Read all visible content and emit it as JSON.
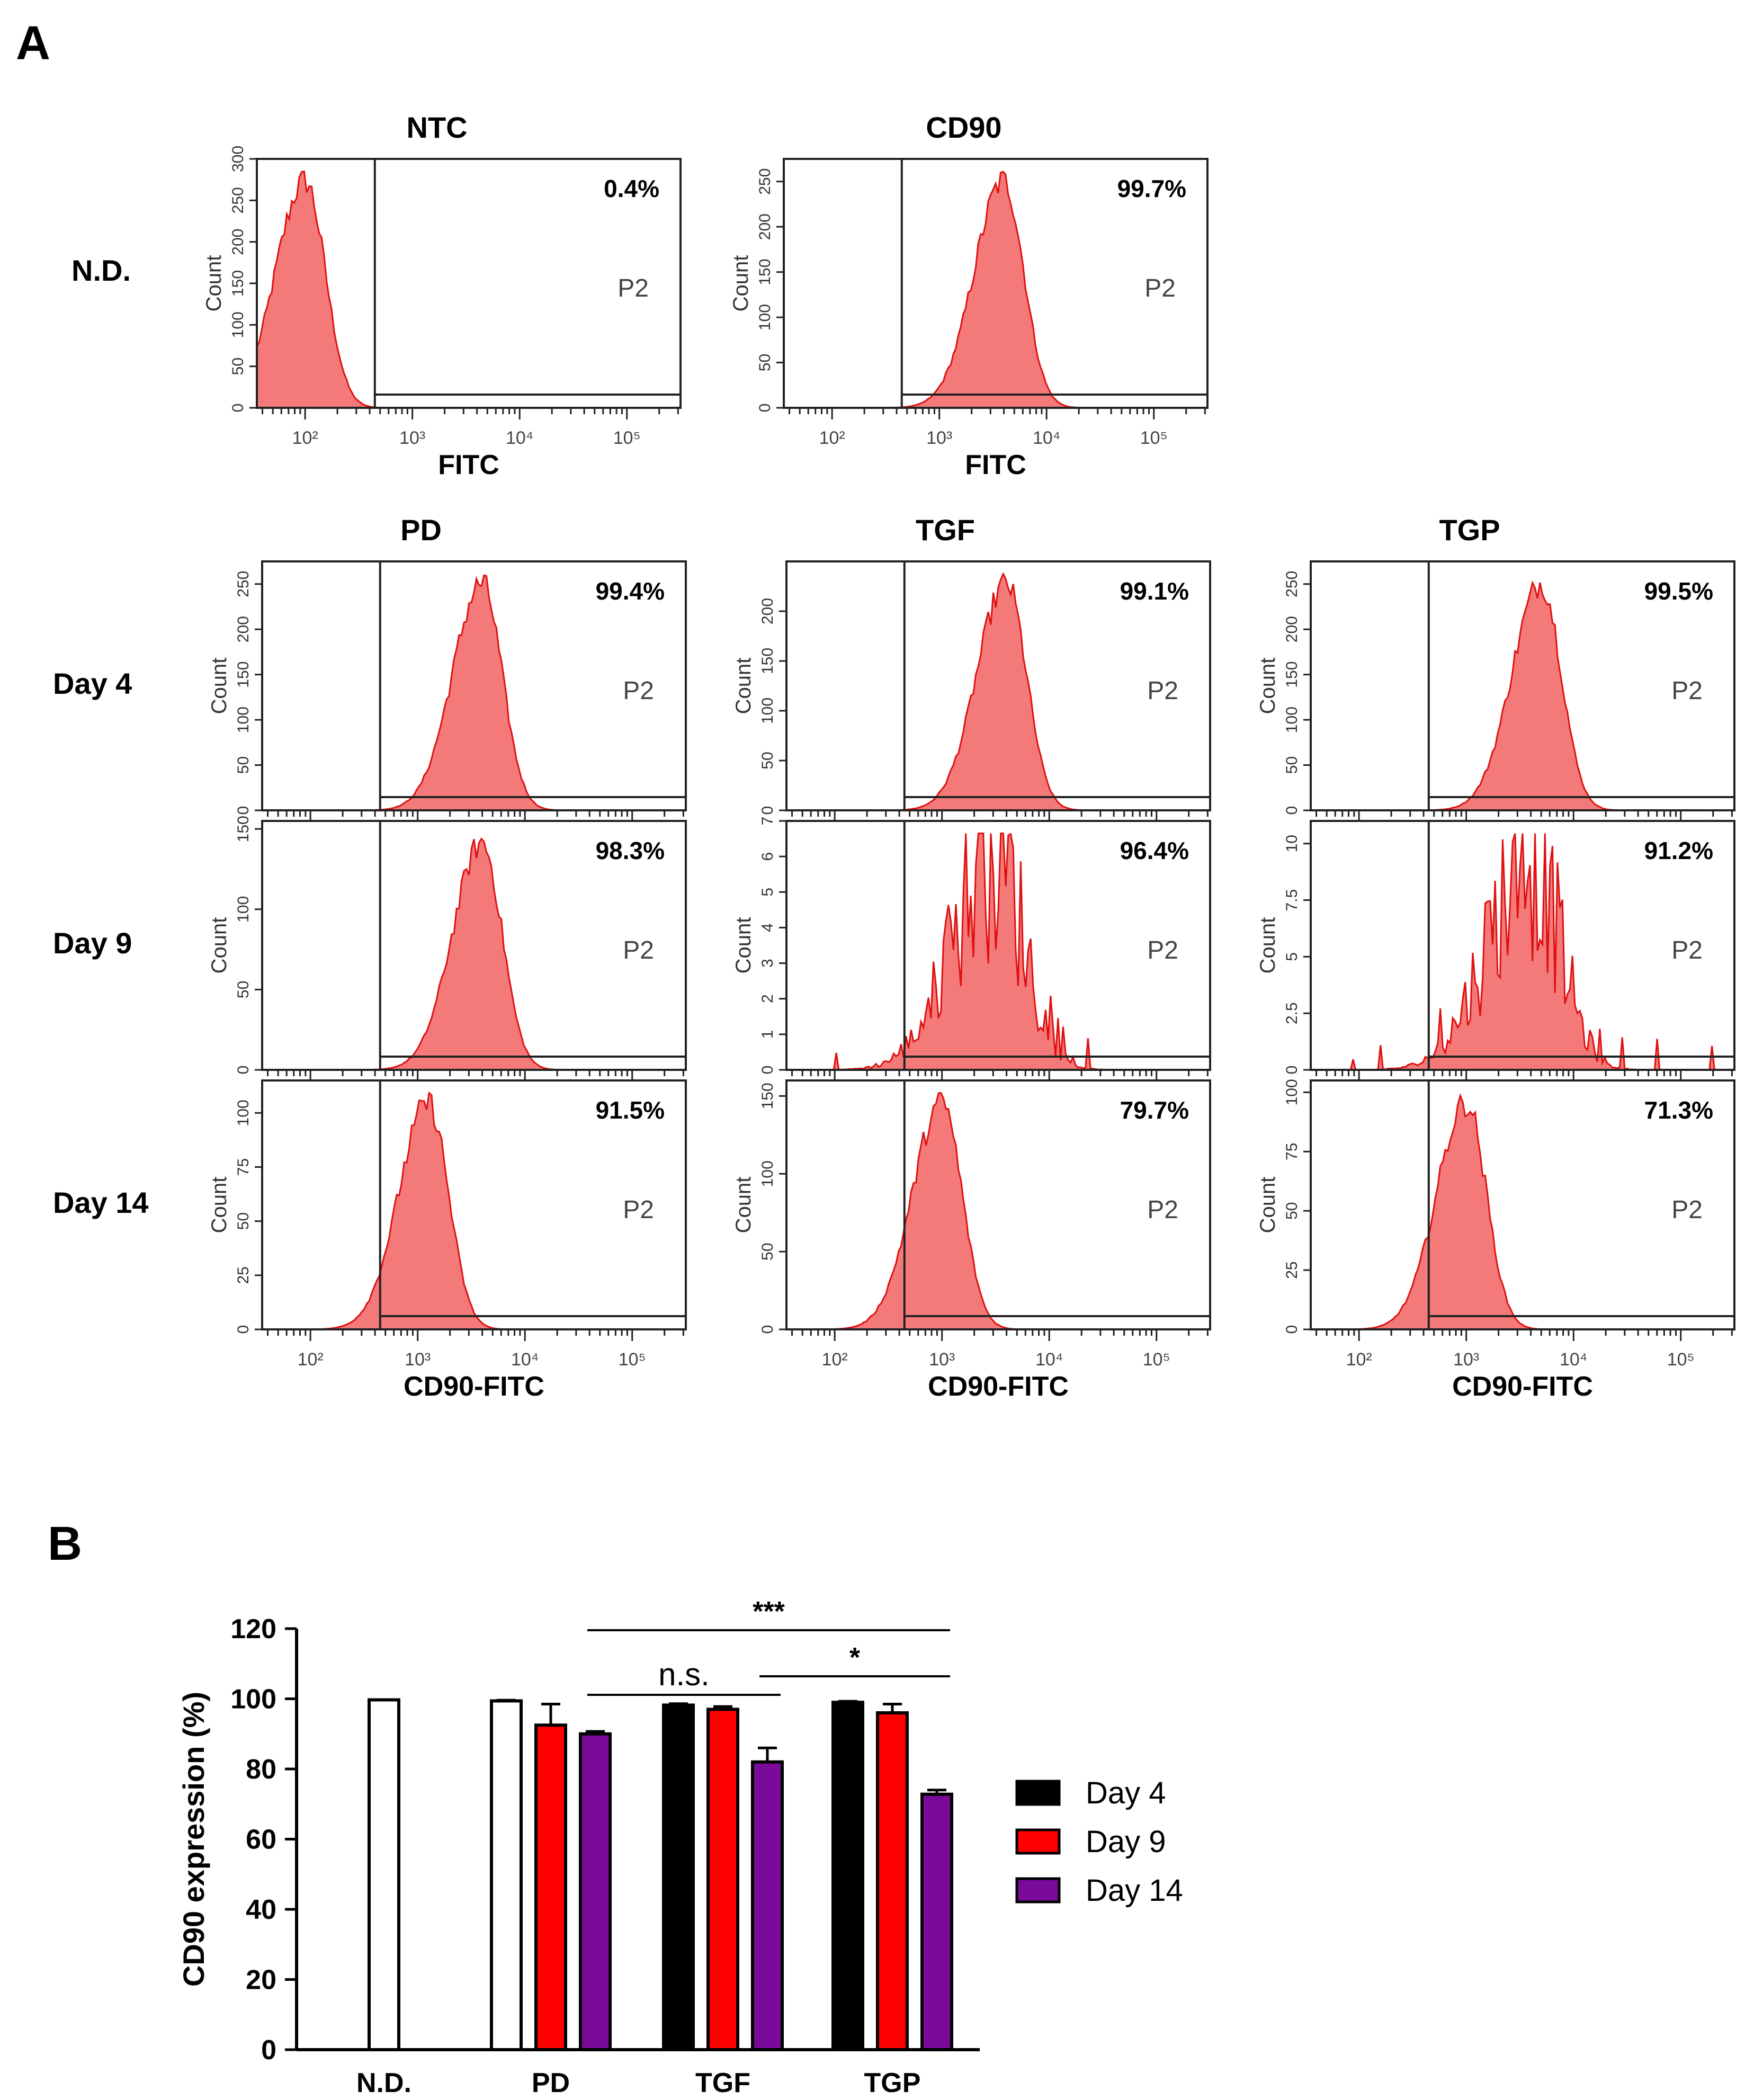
{
  "panel_labels": {
    "a": "A",
    "b": "B"
  },
  "flow": {
    "x_axis_label_top": "FITC",
    "x_axis_label_bottom": "CD90-FITC",
    "y_axis_label": "Count",
    "gate_label": "P2",
    "x_tick_labels": [
      "10²",
      "10³",
      "10⁴",
      "10⁵"
    ],
    "top_row": {
      "row_label": "N.D.",
      "panels": [
        {
          "title": "NTC",
          "percent": "0.4%",
          "ylim": [
            0,
            300
          ],
          "yticks": [
            "0",
            "50",
            "100",
            "150",
            "200",
            "250",
            "300"
          ],
          "peak_log": 2.0,
          "noisy": false
        },
        {
          "title": "CD90",
          "percent": "99.7%",
          "ylim": [
            0,
            275
          ],
          "yticks": [
            "0",
            "50",
            "100",
            "150",
            "200",
            "250"
          ],
          "peak_log": 3.6,
          "noisy": false
        }
      ]
    },
    "columns": [
      "PD",
      "TGF",
      "TGP"
    ],
    "rows": [
      {
        "row_label": "Day 4",
        "panels": [
          {
            "percent": "99.4%",
            "ylim": [
              0,
              275
            ],
            "yticks": [
              "0",
              "50",
              "100",
              "150",
              "200",
              "250"
            ],
            "peak_log": 3.6,
            "noisy": false
          },
          {
            "percent": "99.1%",
            "ylim": [
              0,
              250
            ],
            "yticks": [
              "0",
              "50",
              "100",
              "150",
              "200"
            ],
            "peak_log": 3.6,
            "noisy": false
          },
          {
            "percent": "99.5%",
            "ylim": [
              0,
              275
            ],
            "yticks": [
              "0",
              "50",
              "100",
              "150",
              "200",
              "250"
            ],
            "peak_log": 3.7,
            "noisy": false
          }
        ]
      },
      {
        "row_label": "Day 9",
        "panels": [
          {
            "percent": "98.3%",
            "ylim": [
              0,
              155
            ],
            "yticks": [
              "0",
              "50",
              "100",
              "150"
            ],
            "peak_log": 3.6,
            "noisy": false
          },
          {
            "percent": "96.4%",
            "ylim": [
              0,
              7
            ],
            "yticks": [
              "0",
              "1",
              "2",
              "3",
              "4",
              "5",
              "6",
              "7"
            ],
            "peak_log": 3.5,
            "noisy": true
          },
          {
            "percent": "91.2%",
            "ylim": [
              0,
              11
            ],
            "yticks": [
              "0",
              "2.5",
              "5",
              "7.5",
              "10"
            ],
            "peak_log": 3.6,
            "noisy": true
          }
        ]
      },
      {
        "row_label": "Day 14",
        "panels": [
          {
            "percent": "91.5%",
            "ylim": [
              0,
              115
            ],
            "yticks": [
              "0",
              "25",
              "50",
              "75",
              "100"
            ],
            "peak_log": 3.1,
            "noisy": false
          },
          {
            "percent": "79.7%",
            "ylim": [
              0,
              160
            ],
            "yticks": [
              "0",
              "50",
              "100",
              "150"
            ],
            "peak_log": 3.0,
            "noisy": false
          },
          {
            "percent": "71.3%",
            "ylim": [
              0,
              105
            ],
            "yticks": [
              "0",
              "25",
              "50",
              "75",
              "100"
            ],
            "peak_log": 3.0,
            "noisy": false
          }
        ]
      }
    ],
    "colors": {
      "fill": "#f47a7a",
      "line": "#e01010",
      "frame": "#222222"
    }
  },
  "chart_data": {
    "type": "bar",
    "title": "",
    "xlabel": "",
    "ylabel": "CD90 expression (%)",
    "ylim": [
      0,
      120
    ],
    "yticks": [
      "0",
      "20",
      "40",
      "60",
      "80",
      "100",
      "120"
    ],
    "grid": false,
    "categories": [
      "N.D.",
      "PD",
      "TGF",
      "TGP"
    ],
    "baseline": {
      "category": "N.D.",
      "value": 99.7,
      "error": 0
    },
    "series": [
      {
        "name": "Day 4",
        "color": "#000000",
        "values": [
          null,
          99.4,
          98.2,
          99.0
        ],
        "errors": [
          null,
          0.2,
          0.4,
          0.3
        ],
        "open_style": [
          false,
          true,
          false,
          false
        ]
      },
      {
        "name": "Day 9",
        "color": "#ff0000",
        "values": [
          null,
          92.5,
          97.0,
          96.0
        ],
        "errors": [
          null,
          6.0,
          0.8,
          2.5
        ],
        "open_style": [
          false,
          false,
          false,
          false
        ]
      },
      {
        "name": "Day 14",
        "color": "#7a0a9a",
        "values": [
          null,
          90.0,
          82.0,
          72.8
        ],
        "errors": [
          null,
          0.7,
          4.0,
          1.2
        ],
        "open_style": [
          false,
          false,
          false,
          false
        ]
      }
    ],
    "legend_position": "right",
    "significance": [
      {
        "label": "***",
        "from": "PD Day 14",
        "to": "TGP Day 14"
      },
      {
        "label": "n.s.",
        "from": "PD Day 14",
        "to": "TGF Day 14"
      },
      {
        "label": "*",
        "from": "TGF Day 14",
        "to": "TGP Day 14"
      }
    ]
  }
}
